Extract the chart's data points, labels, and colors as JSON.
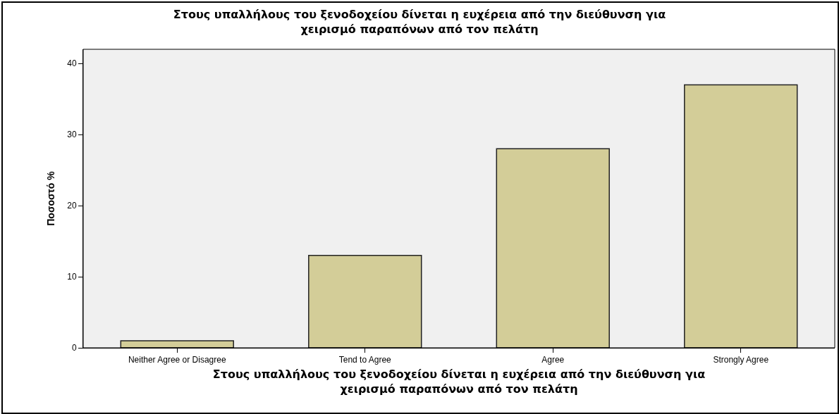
{
  "chart_data": {
    "type": "bar",
    "title": "Στους υπαλλήλους του ξενοδοχείου δίνεται η ευχέρεια από την διεύθυνση για\nχειρισμό παραπόνων από τον πελάτη",
    "xlabel": "Στους υπαλλήλους του ξενοδοχείου δίνεται η ευχέρεια από την διεύθυνση για\nχειρισμό παραπόνων από τον πελάτη",
    "ylabel": "Ποσοστό %",
    "categories": [
      "Neither Agree or Disagree",
      "Tend to Agree",
      "Agree",
      "Strongly Agree"
    ],
    "values": [
      1,
      13,
      28,
      37
    ],
    "color": "#d3cd98",
    "ylim": [
      0,
      42
    ],
    "yticks": [
      0,
      10,
      20,
      30,
      40
    ]
  }
}
